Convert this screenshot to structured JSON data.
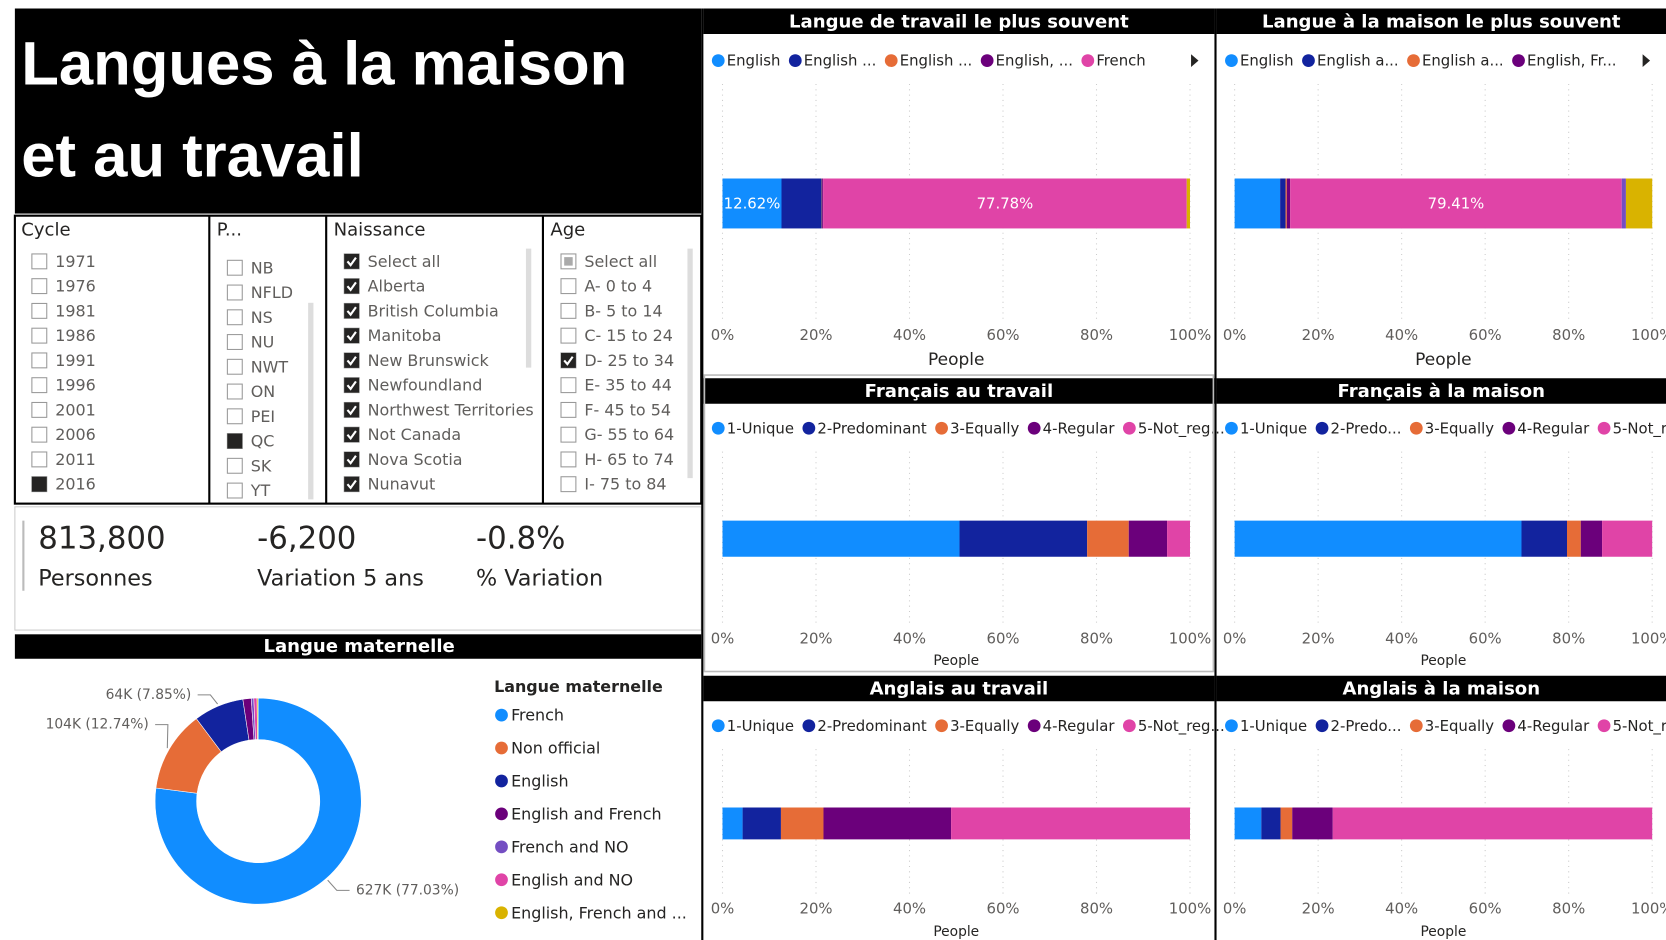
{
  "header": {
    "title_lines": [
      "Langues à la maison",
      "et au travail"
    ]
  },
  "slicers": [
    {
      "title": "Cycle",
      "items": [
        {
          "label": "1971",
          "checked": false
        },
        {
          "label": "1976",
          "checked": false
        },
        {
          "label": "1981",
          "checked": false
        },
        {
          "label": "1986",
          "checked": false
        },
        {
          "label": "1991",
          "checked": false
        },
        {
          "label": "1996",
          "checked": false
        },
        {
          "label": "2001",
          "checked": false
        },
        {
          "label": "2006",
          "checked": false
        },
        {
          "label": "2011",
          "checked": false
        },
        {
          "label": "2016",
          "checked": true
        }
      ]
    },
    {
      "title": "P...",
      "items": [
        {
          "label": "NB",
          "checked": false
        },
        {
          "label": "NFLD",
          "checked": false
        },
        {
          "label": "NS",
          "checked": false
        },
        {
          "label": "NU",
          "checked": false
        },
        {
          "label": "NWT",
          "checked": false
        },
        {
          "label": "ON",
          "checked": false
        },
        {
          "label": "PEI",
          "checked": false
        },
        {
          "label": "QC",
          "checked": true
        },
        {
          "label": "SK",
          "checked": false
        },
        {
          "label": "YT",
          "checked": false
        }
      ]
    },
    {
      "title": "Naissance",
      "items": [
        {
          "label": "Select all",
          "checked": true
        },
        {
          "label": "Alberta",
          "checked": true
        },
        {
          "label": "British Columbia",
          "checked": true
        },
        {
          "label": "Manitoba",
          "checked": true
        },
        {
          "label": "New Brunswick",
          "checked": true
        },
        {
          "label": "Newfoundland",
          "checked": true
        },
        {
          "label": "Northwest Territories",
          "checked": true
        },
        {
          "label": "Not Canada",
          "checked": true
        },
        {
          "label": "Nova Scotia",
          "checked": true
        },
        {
          "label": "Nunavut",
          "checked": true
        }
      ]
    },
    {
      "title": "Age",
      "items": [
        {
          "label": "Select all",
          "checked": false,
          "partial": true
        },
        {
          "label": "A- 0 to 4",
          "checked": false
        },
        {
          "label": "B- 5 to 14",
          "checked": false
        },
        {
          "label": "C- 15 to 24",
          "checked": false
        },
        {
          "label": "D- 25 to 34",
          "checked": true
        },
        {
          "label": "E- 35 to 44",
          "checked": false
        },
        {
          "label": "F- 45 to 54",
          "checked": false
        },
        {
          "label": "G- 55 to 64",
          "checked": false
        },
        {
          "label": "H- 65 to 74",
          "checked": false
        },
        {
          "label": "I- 75 to 84",
          "checked": false
        }
      ]
    }
  ],
  "kpis": [
    {
      "value": "813,800",
      "label": "Personnes"
    },
    {
      "value": "-6,200",
      "label": "Variation 5 ans"
    },
    {
      "value": "-0.8%",
      "label": "% Variation"
    }
  ],
  "donut": {
    "type": "pie",
    "title": "Langue maternelle",
    "legend_title": "Langue maternelle",
    "categories": [
      "French",
      "Non official",
      "English",
      "English and French",
      "French and NO",
      "English and NO",
      "English, French and ..."
    ],
    "colors": [
      "#118DFF",
      "#E66C37",
      "#12239E",
      "#6B007B",
      "#744EC2",
      "#E044A7",
      "#D9B300"
    ],
    "values": [
      77.03,
      12.74,
      7.85,
      1.3,
      0.4,
      0.5,
      0.18
    ],
    "value_labels": [
      "627K (77.03%)",
      "104K (12.74%)",
      "64K (7.85%)",
      null,
      null,
      null,
      null
    ]
  },
  "charts": [
    {
      "type": "bar",
      "title": "Langue de travail le plus souvent",
      "xlabel": "People",
      "xlim": [
        0,
        100
      ],
      "xticks": [
        {
          "value": 0,
          "label": "0%"
        },
        {
          "value": 20,
          "label": "20%"
        },
        {
          "value": 40,
          "label": "40%"
        },
        {
          "value": 60,
          "label": "60%"
        },
        {
          "value": 80,
          "label": "80%"
        },
        {
          "value": 100,
          "label": "100%"
        }
      ],
      "series": [
        {
          "name": "English",
          "color": "#118DFF",
          "values": [
            12.62
          ],
          "value_labels": [
            "12.62%"
          ]
        },
        {
          "name": "English ...",
          "color": "#12239E",
          "values": [
            8.6
          ]
        },
        {
          "name": "English ...",
          "color": "#E66C37",
          "values": [
            0.1
          ]
        },
        {
          "name": "English, ...",
          "color": "#6B007B",
          "values": [
            0.2
          ]
        },
        {
          "name": "French",
          "color": "#E044A7",
          "values": [
            77.78
          ],
          "value_labels": [
            "77.78%"
          ]
        },
        {
          "color": "#D9B300",
          "values": [
            0.7
          ]
        }
      ]
    },
    {
      "type": "bar",
      "title": "Langue à la maison le plus souvent",
      "xlabel": "People",
      "xlim": [
        0,
        100
      ],
      "xticks": [
        {
          "value": 0,
          "label": "0%"
        },
        {
          "value": 20,
          "label": "20%"
        },
        {
          "value": 40,
          "label": "40%"
        },
        {
          "value": 60,
          "label": "60%"
        },
        {
          "value": 80,
          "label": "80%"
        },
        {
          "value": 100,
          "label": "100%"
        }
      ],
      "series": [
        {
          "name": "English",
          "color": "#118DFF",
          "values": [
            10.9
          ]
        },
        {
          "name": "English a...",
          "color": "#12239E",
          "values": [
            1.3
          ]
        },
        {
          "name": "English a...",
          "color": "#E66C37",
          "values": [
            0.3
          ]
        },
        {
          "name": "English, Fr...",
          "color": "#6B007B",
          "values": [
            0.8
          ]
        },
        {
          "color": "#E044A7",
          "values": [
            79.41
          ],
          "value_labels": [
            "79.41%"
          ]
        },
        {
          "color": "#744EC2",
          "values": [
            1.0
          ]
        },
        {
          "color": "#D9B300",
          "values": [
            6.3
          ]
        }
      ]
    },
    {
      "type": "bar",
      "title": "Français au travail",
      "xlabel": "People",
      "xlim": [
        0,
        100
      ],
      "xticks": [
        {
          "value": 0,
          "label": "0%"
        },
        {
          "value": 20,
          "label": "20%"
        },
        {
          "value": 40,
          "label": "40%"
        },
        {
          "value": 60,
          "label": "60%"
        },
        {
          "value": 80,
          "label": "80%"
        },
        {
          "value": 100,
          "label": "100%"
        }
      ],
      "series": [
        {
          "name": "1-Unique",
          "color": "#118DFF",
          "values": [
            50.7
          ]
        },
        {
          "name": "2-Predominant",
          "color": "#12239E",
          "values": [
            27.3
          ]
        },
        {
          "name": "3-Equally",
          "color": "#E66C37",
          "values": [
            8.9
          ]
        },
        {
          "name": "4-Regular",
          "color": "#6B007B",
          "values": [
            8.2
          ]
        },
        {
          "name": "5-Not_reg...",
          "color": "#E044A7",
          "values": [
            4.9
          ]
        }
      ]
    },
    {
      "type": "bar",
      "title": "Français à la maison",
      "xlabel": "People",
      "xlim": [
        0,
        100
      ],
      "xticks": [
        {
          "value": 0,
          "label": "0%"
        },
        {
          "value": 20,
          "label": "20%"
        },
        {
          "value": 40,
          "label": "40%"
        },
        {
          "value": 60,
          "label": "60%"
        },
        {
          "value": 80,
          "label": "80%"
        },
        {
          "value": 100,
          "label": "100%"
        }
      ],
      "series": [
        {
          "name": "1-Unique",
          "color": "#118DFF",
          "values": [
            68.7
          ]
        },
        {
          "name": "2-Predo...",
          "color": "#12239E",
          "values": [
            10.9
          ]
        },
        {
          "name": "3-Equally",
          "color": "#E66C37",
          "values": [
            3.3
          ]
        },
        {
          "name": "4-Regular",
          "color": "#6B007B",
          "values": [
            5.1
          ]
        },
        {
          "name": "5-Not_re...",
          "color": "#E044A7",
          "values": [
            12.0
          ]
        }
      ]
    },
    {
      "type": "bar",
      "title": "Anglais au travail",
      "xlabel": "People",
      "xlim": [
        0,
        100
      ],
      "xticks": [
        {
          "value": 0,
          "label": "0%"
        },
        {
          "value": 20,
          "label": "20%"
        },
        {
          "value": 40,
          "label": "40%"
        },
        {
          "value": 60,
          "label": "60%"
        },
        {
          "value": 80,
          "label": "80%"
        },
        {
          "value": 100,
          "label": "100%"
        }
      ],
      "series": [
        {
          "name": "1-Unique",
          "color": "#118DFF",
          "values": [
            4.3
          ]
        },
        {
          "name": "2-Predominant",
          "color": "#12239E",
          "values": [
            8.2
          ]
        },
        {
          "name": "3-Equally",
          "color": "#E66C37",
          "values": [
            9.1
          ]
        },
        {
          "name": "4-Regular",
          "color": "#6B007B",
          "values": [
            27.3
          ]
        },
        {
          "name": "5-Not_reg...",
          "color": "#E044A7",
          "values": [
            51.1
          ]
        }
      ]
    },
    {
      "type": "bar",
      "title": "Anglais à la maison",
      "xlabel": "People",
      "xlim": [
        0,
        100
      ],
      "xticks": [
        {
          "value": 0,
          "label": "0%"
        },
        {
          "value": 20,
          "label": "20%"
        },
        {
          "value": 40,
          "label": "40%"
        },
        {
          "value": 60,
          "label": "60%"
        },
        {
          "value": 80,
          "label": "80%"
        },
        {
          "value": 100,
          "label": "100%"
        }
      ],
      "series": [
        {
          "name": "1-Unique",
          "color": "#118DFF",
          "values": [
            6.4
          ]
        },
        {
          "name": "2-Predo...",
          "color": "#12239E",
          "values": [
            4.6
          ]
        },
        {
          "name": "3-Equally",
          "color": "#E66C37",
          "values": [
            2.8
          ]
        },
        {
          "name": "4-Regular",
          "color": "#6B007B",
          "values": [
            9.7
          ]
        },
        {
          "name": "5-Not_re...",
          "color": "#E044A7",
          "values": [
            76.5
          ]
        }
      ]
    }
  ]
}
